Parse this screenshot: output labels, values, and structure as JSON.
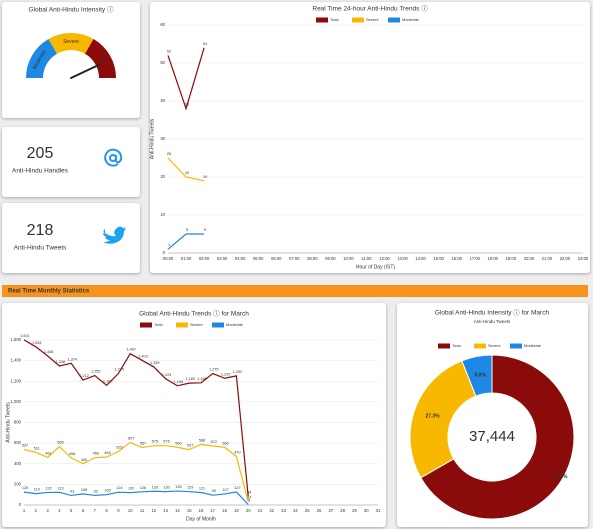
{
  "gauge": {
    "title": "Global Anti-Hindu Intensity ⓘ",
    "segments": [
      {
        "name": "Moderate",
        "color": "#1e88e5"
      },
      {
        "name": "Severe",
        "color": "#f9b800"
      },
      {
        "name": "Toxic",
        "color": "#8b0a0a"
      }
    ],
    "value": 86,
    "range": [
      0,
      100
    ]
  },
  "stats": [
    {
      "value": 205,
      "label": "Anti-Hindu Handles"
    },
    {
      "value": 218,
      "label": "Anti-Hindu Tweets"
    }
  ],
  "section_title": "Real Time Monthly Statistics",
  "chart_data": [
    {
      "type": "line",
      "title": "Real Time 24-hour Anti-Hindu Trends ⓘ",
      "x_label": "Hour of Day (IST)",
      "y_label": "Anti-Hindu Tweets",
      "categories": [
        "00:00",
        "01:00",
        "02:00",
        "03:00",
        "04:00",
        "05:00",
        "06:00",
        "07:00",
        "08:00",
        "09:00",
        "10:00",
        "11:00",
        "12:00",
        "13:00",
        "14:00",
        "15:00",
        "16:00",
        "17:00",
        "18:00",
        "19:00",
        "20:00",
        "21:00",
        "22:00",
        "23:00"
      ],
      "series": [
        {
          "name": "Toxic",
          "color": "#8b0a0a",
          "values": [
            52,
            38,
            54,
            null,
            null,
            null,
            null,
            null,
            null,
            null,
            null,
            null,
            null,
            null,
            null,
            null,
            null,
            null,
            null,
            null,
            null,
            null,
            null,
            null
          ]
        },
        {
          "name": "Severe",
          "color": "#f9b800",
          "values": [
            25,
            20,
            19,
            null,
            null,
            null,
            null,
            null,
            null,
            null,
            null,
            null,
            null,
            null,
            null,
            null,
            null,
            null,
            null,
            null,
            null,
            null,
            null,
            null
          ]
        },
        {
          "name": "Moderate",
          "color": "#1e88e5",
          "values": [
            1,
            5,
            5,
            null,
            null,
            null,
            null,
            null,
            null,
            null,
            null,
            null,
            null,
            null,
            null,
            null,
            null,
            null,
            null,
            null,
            null,
            null,
            null,
            null
          ]
        }
      ],
      "ylim": [
        0,
        60
      ],
      "yticks": [
        0,
        10,
        20,
        30,
        40,
        50,
        60
      ],
      "grid": true
    },
    {
      "type": "line",
      "title": "Global Anti-Hindu Trends ⓘ for March",
      "x_label": "Day of Month",
      "y_label": "Anti-Hindu Tweets",
      "categories": [
        "1",
        "2",
        "3",
        "4",
        "5",
        "6",
        "7",
        "8",
        "9",
        "10",
        "11",
        "12",
        "13",
        "14",
        "15",
        "16",
        "17",
        "18",
        "19",
        "20",
        "21",
        "22",
        "23",
        "24",
        "25",
        "26",
        "27",
        "28",
        "29",
        "30",
        "31"
      ],
      "series": [
        {
          "name": "Toxic",
          "color": "#8b0a0a",
          "values": [
            1601,
            1534,
            1446,
            1348,
            1374,
            1212,
            1255,
            1160,
            1275,
            1467,
            1403,
            1339,
            1224,
            1156,
            1182,
            1185,
            1275,
            1229,
            1252,
            84,
            null,
            null,
            null,
            null,
            null,
            null,
            null,
            null,
            null,
            null,
            null
          ],
          "value_labels": [
            "1,601",
            "1,534",
            "1,446",
            "1,348",
            "1,374",
            "1,212",
            "1,255",
            "1,160",
            "1,275",
            "1,467",
            "1,403",
            "1,339",
            "1,224",
            "1,156",
            "1,182",
            "1,185",
            "1,275",
            "1,229",
            "1,252",
            "84",
            null,
            null,
            null,
            null,
            null,
            null,
            null,
            null,
            null,
            null,
            null
          ]
        },
        {
          "name": "Severe",
          "color": "#f9b800",
          "values": [
            537,
            511,
            461,
            565,
            458,
            400,
            459,
            465,
            520,
            607,
            557,
            575,
            575,
            560,
            537,
            588,
            572,
            560,
            470,
            34,
            null,
            null,
            null,
            null,
            null,
            null,
            null,
            null,
            null,
            null,
            null
          ]
        },
        {
          "name": "Moderate",
          "color": "#1e88e5",
          "values": [
            125,
            110,
            122,
            123,
            93,
            108,
            93,
            100,
            124,
            120,
            128,
            133,
            130,
            135,
            129,
            121,
            95,
            107,
            127,
            5,
            null,
            null,
            null,
            null,
            null,
            null,
            null,
            null,
            null,
            null,
            null
          ]
        }
      ],
      "ylim": [
        0,
        1600
      ],
      "yticks": [
        0,
        200,
        400,
        600,
        800,
        {
          "value": 1000,
          "label": "1,000"
        },
        {
          "value": 1200,
          "label": "1,200"
        },
        {
          "value": 1400,
          "label": "1,400"
        },
        {
          "value": 1600,
          "label": "1,600"
        }
      ],
      "grid": true
    },
    {
      "type": "pie",
      "title": "Global Anti-Hindu Intensity ⓘ for March",
      "subtitle": "Anti-Hindu Tweets",
      "center_label": "37,444",
      "categories": [
        "Toxic",
        "Severe",
        "Moderate"
      ],
      "values": [
        66.8,
        27.3,
        6.0
      ],
      "value_labels": [
        "66.8%",
        "27.3%",
        "6.0%"
      ],
      "colors": [
        "#8b0a0a",
        "#f9b800",
        "#1e88e5"
      ]
    }
  ]
}
